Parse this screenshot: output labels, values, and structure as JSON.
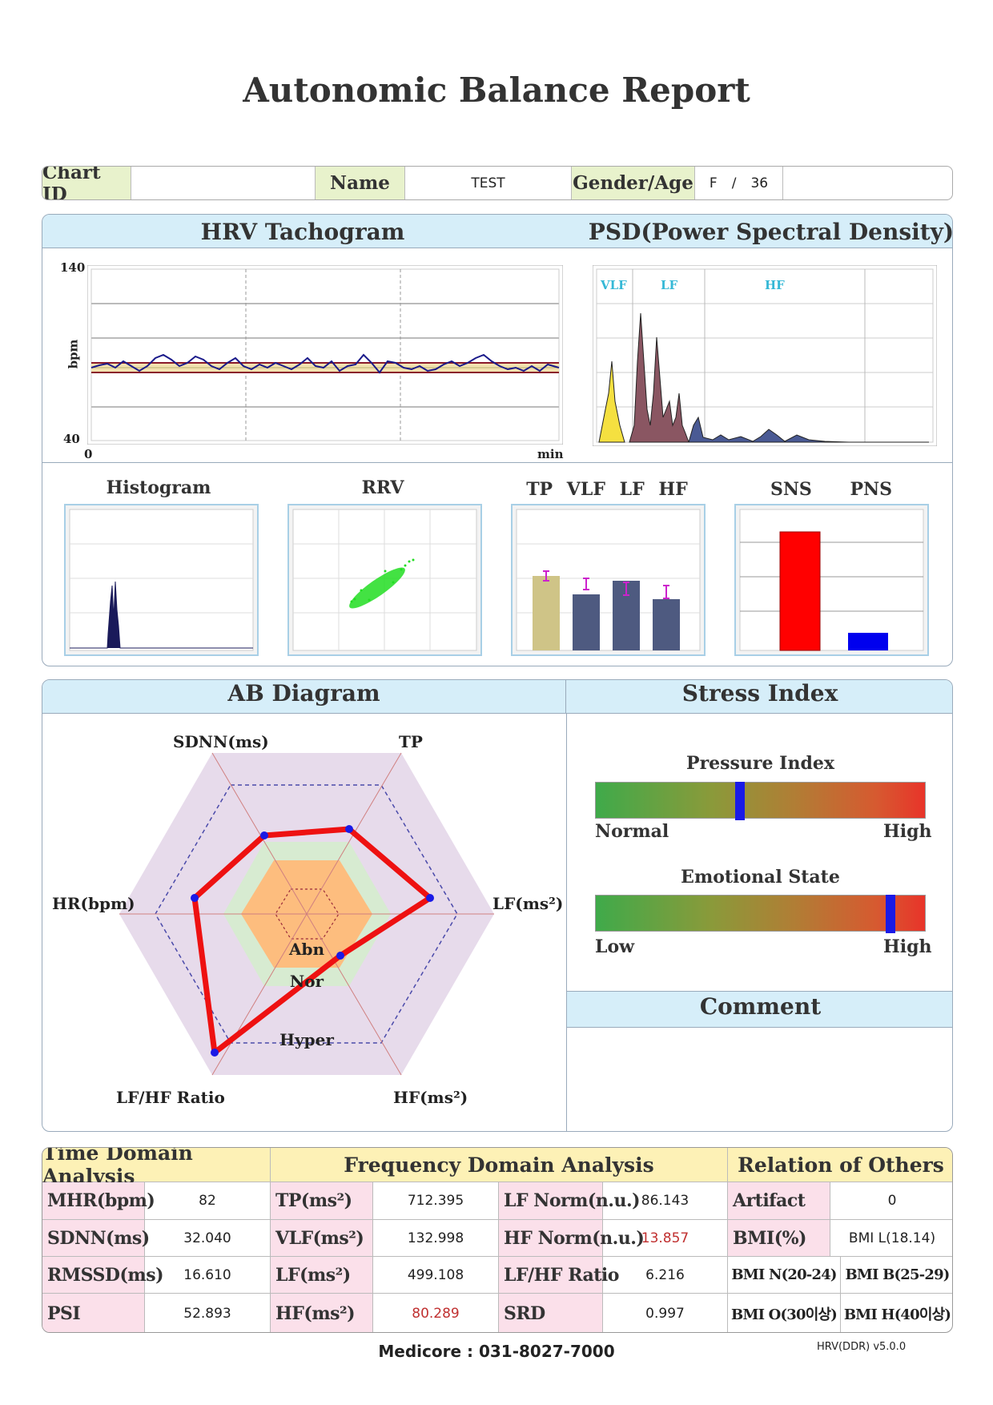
{
  "title": "Autonomic Balance Report",
  "patient": {
    "chart_id_label": "Chart ID",
    "chart_id": "",
    "name_label": "Name",
    "name": "TEST",
    "gender_age_label": "Gender/Age",
    "gender": "F",
    "separator": "/",
    "age": "36"
  },
  "tachogram": {
    "title": "HRV Tachogram",
    "y_label": "bpm",
    "y_max": "140",
    "y_min": "40",
    "x_start": "0",
    "x_unit": "min"
  },
  "psd": {
    "title": "PSD(Power Spectral Density)",
    "bands": [
      "VLF",
      "LF",
      "HF"
    ]
  },
  "mini": {
    "histogram": "Histogram",
    "rrv": "RRV",
    "power_labels": [
      "TP",
      "VLF",
      "LF",
      "HF"
    ],
    "balance_labels": [
      "SNS",
      "PNS"
    ]
  },
  "ab": {
    "title": "AB Diagram",
    "axes": [
      "SDNN(ms)",
      "TP",
      "LF(ms²)",
      "HF(ms²)",
      "LF/HF Ratio",
      "HR(bpm)"
    ],
    "zones": [
      "Abn",
      "Nor",
      "Hyper"
    ]
  },
  "stress": {
    "title": "Stress Index",
    "pressure_label": "Pressure Index",
    "pressure_low": "Normal",
    "pressure_high": "High",
    "pressure_level": 0.435,
    "emotional_label": "Emotional State",
    "emotional_low": "Low",
    "emotional_high": "High",
    "emotional_level": 0.89
  },
  "comment": {
    "title": "Comment"
  },
  "tables": {
    "time_header": "Time Domain Analysis",
    "freq_header": "Frequency Domain Analysis",
    "rel_header": "Relation of Others",
    "time_rows": [
      {
        "label": "MHR(bpm)",
        "value": "82"
      },
      {
        "label": "SDNN(ms)",
        "value": "32.040"
      },
      {
        "label": "RMSSD(ms)",
        "value": "16.610"
      },
      {
        "label": "PSI",
        "value": "52.893"
      }
    ],
    "freq_rows": [
      {
        "label": "TP(ms²)",
        "value": "712.395",
        "label2": "LF Norm(n.u.)",
        "value2": "86.143"
      },
      {
        "label": "VLF(ms²)",
        "value": "132.998",
        "label2": "HF Norm(n.u.)",
        "value2": "13.857"
      },
      {
        "label": "LF(ms²)",
        "value": "499.108",
        "label2": "LF/HF Ratio",
        "value2": "6.216"
      },
      {
        "label": "HF(ms²)",
        "value": "80.289",
        "label2": "SRD",
        "value2": "0.997"
      }
    ],
    "artifact_label": "Artifact",
    "artifact_value": "0",
    "bmi_label": "BMI(%)",
    "bmi_value": "BMI L(18.14)",
    "bmi_n": "BMI N(20-24)",
    "bmi_b": "BMI B(25-29)",
    "bmi_o": "BMI O(30이상)",
    "bmi_h": "BMI H(40이상)"
  },
  "footer": "Medicore : 031-8027-7000",
  "version": "HRV(DDR) v5.0.0",
  "colors": {
    "header_blue": "#d6eef9",
    "label_pink": "#fbe0ea",
    "header_yellow": "#fdf1b6",
    "patient_green": "#e8f2cc"
  }
}
